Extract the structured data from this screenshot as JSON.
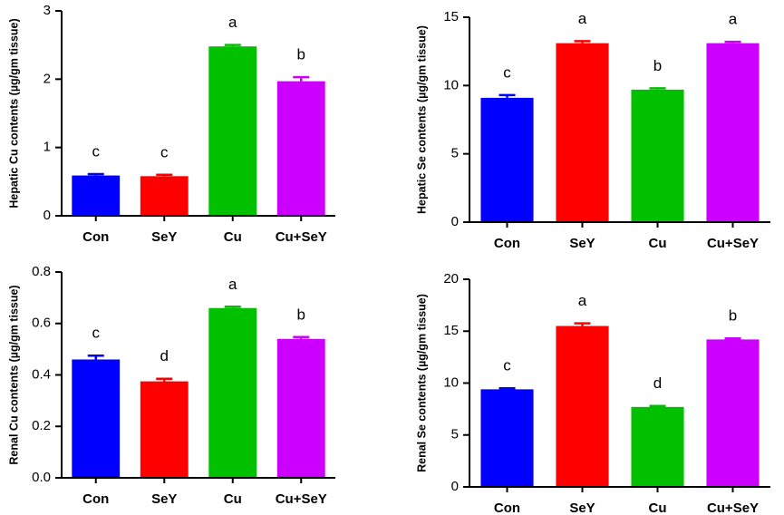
{
  "chart_data": [
    {
      "type": "bar",
      "ylabel": "Hepatic Cu contents (µg/gm tissue)",
      "categories": [
        "Con",
        "SeY",
        "Cu",
        "Cu+SeY"
      ],
      "values": [
        0.59,
        0.58,
        2.48,
        1.97
      ],
      "errors": [
        0.02,
        0.02,
        0.02,
        0.06
      ],
      "annotations": [
        "c",
        "c",
        "a",
        "b"
      ],
      "colors": [
        "#0000ff",
        "#ff0000",
        "#00c000",
        "#cc00ff"
      ],
      "ylim": [
        0,
        3
      ],
      "yticks": [
        0,
        1,
        2,
        3
      ]
    },
    {
      "type": "bar",
      "ylabel": "Hepatic Se contents (µg/gm tissue)",
      "categories": [
        "Con",
        "SeY",
        "Cu",
        "Cu+SeY"
      ],
      "values": [
        9.1,
        13.1,
        9.7,
        13.1
      ],
      "errors": [
        0.2,
        0.15,
        0.1,
        0.1
      ],
      "annotations": [
        "c",
        "a",
        "b",
        "a"
      ],
      "colors": [
        "#0000ff",
        "#ff0000",
        "#00c000",
        "#cc00ff"
      ],
      "ylim": [
        0,
        15
      ],
      "yticks": [
        0,
        5,
        10,
        15
      ]
    },
    {
      "type": "bar",
      "ylabel": "Renal Cu contents (µg/gm tissue)",
      "categories": [
        "Con",
        "SeY",
        "Cu",
        "Cu+SeY"
      ],
      "values": [
        0.46,
        0.375,
        0.66,
        0.54
      ],
      "errors": [
        0.015,
        0.01,
        0.005,
        0.007
      ],
      "annotations": [
        "c",
        "d",
        "a",
        "b"
      ],
      "colors": [
        "#0000ff",
        "#ff0000",
        "#00c000",
        "#cc00ff"
      ],
      "ylim": [
        0,
        0.8
      ],
      "yticks": [
        {
          "value": 0,
          "label": "0.0"
        },
        0.2,
        0.4,
        0.6,
        0.8
      ]
    },
    {
      "type": "bar",
      "ylabel": "Renal Se contents (µg/gm tissue)",
      "categories": [
        "Con",
        "SeY",
        "Cu",
        "Cu+SeY"
      ],
      "values": [
        9.4,
        15.5,
        7.7,
        14.2
      ],
      "errors": [
        0.1,
        0.25,
        0.1,
        0.1
      ],
      "annotations": [
        "c",
        "a",
        "d",
        "b"
      ],
      "colors": [
        "#0000ff",
        "#ff0000",
        "#00c000",
        "#cc00ff"
      ],
      "ylim": [
        0,
        20
      ],
      "yticks": [
        0,
        5,
        10,
        15,
        20
      ]
    }
  ]
}
